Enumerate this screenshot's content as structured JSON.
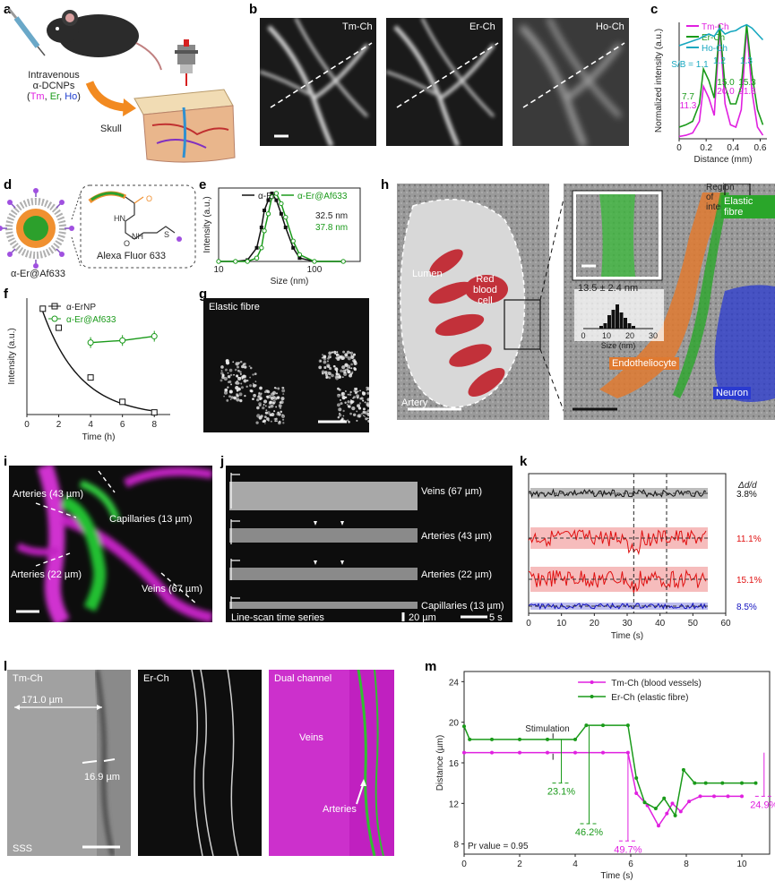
{
  "panel_letters": {
    "a": "a",
    "b": "b",
    "c": "c",
    "d": "d",
    "e": "e",
    "f": "f",
    "g": "g",
    "h": "h",
    "i": "i",
    "j": "j",
    "k": "k",
    "l": "l",
    "m": "m"
  },
  "panel_a": {
    "injection_line1": "Intravenous",
    "injection_line2": "α-DCNPs",
    "dopant_open": "(",
    "tm": "Tm",
    "sep1": ", ",
    "er": "Er",
    "sep2": ", ",
    "ho": "Ho",
    "dopant_close": ")",
    "skull": "Skull"
  },
  "panel_b": {
    "channels": [
      "Tm-Ch",
      "Er-Ch",
      "Ho-Ch"
    ]
  },
  "panel_d": {
    "dye": "Alexa Fluor 633",
    "particle": "α-Er@Af633"
  },
  "panel_g": {
    "title": "Elastic fibre"
  },
  "panel_h": {
    "lumen": "Lumen",
    "rbc_1": "Red",
    "rbc_2": "blood",
    "rbc_3": "cell",
    "artery": "Artery",
    "roi_1": "Region",
    "roi_2": "of",
    "roi_3": "interest",
    "elastic": "Elastic fibre",
    "thickness": "13.5 ± 2.4 nm",
    "endo": "Endotheliocyte",
    "neuron": "Neuron",
    "hist_xlabel": "Size (nm)",
    "hist_ticks": [
      "0",
      "10",
      "20",
      "30"
    ],
    "hist_values": [
      1,
      2,
      5,
      7,
      9,
      6,
      4,
      2,
      1
    ]
  },
  "panel_i": {
    "labels": [
      "Arteries (43 µm)",
      "Capillaries (13 µm)",
      "Arteries (22 µm)",
      "Veins (67 µm)"
    ]
  },
  "panel_j": {
    "rows": [
      "Veins (67 µm)",
      "Arteries (43 µm)",
      "Arteries (22 µm)",
      "Capillaries (13 µm)"
    ],
    "caption": "Line-scan time series",
    "scale_um": "20 µm",
    "scale_s": "5 s"
  },
  "panel_l": {
    "tm": "Tm-Ch",
    "er": "Er-Ch",
    "dual": "Dual channel",
    "width1": "171.0 µm",
    "width2": "16.9 µm",
    "sss": "SSS",
    "veins": "Veins",
    "arteries": "Arteries"
  },
  "colors": {
    "tm": "#e020e0",
    "er": "#1a9a1a",
    "ho": "#18a8c0",
    "black": "#111111",
    "red": "#e01010",
    "blue": "#1010c0",
    "rbc": "#c0202a",
    "endo": "#e07a30",
    "neuron": "#2a3ad0",
    "elastic": "#2aa62a"
  },
  "chart_data": [
    {
      "panel": "c",
      "type": "line",
      "xlabel": "Distance (mm)",
      "ylabel": "Normalized intensity (a.u.)",
      "xlim": [
        0,
        0.65
      ],
      "xticks": [
        "0",
        "0.2",
        "0.4",
        "0.6"
      ],
      "series": [
        {
          "name": "Tm-Ch",
          "x": [
            0,
            0.05,
            0.1,
            0.15,
            0.18,
            0.22,
            0.26,
            0.3,
            0.34,
            0.38,
            0.42,
            0.46,
            0.5,
            0.54,
            0.58,
            0.62
          ],
          "y": [
            0.02,
            0.03,
            0.05,
            0.15,
            0.45,
            0.35,
            0.2,
            0.95,
            0.3,
            0.12,
            0.1,
            0.25,
            0.95,
            0.4,
            0.1,
            0.03
          ]
        },
        {
          "name": "Er-Ch",
          "x": [
            0,
            0.05,
            0.1,
            0.15,
            0.18,
            0.22,
            0.26,
            0.3,
            0.34,
            0.38,
            0.42,
            0.46,
            0.5,
            0.54,
            0.58,
            0.62
          ],
          "y": [
            0.1,
            0.12,
            0.15,
            0.3,
            0.6,
            0.5,
            0.35,
            0.98,
            0.45,
            0.3,
            0.3,
            0.45,
            0.98,
            0.55,
            0.25,
            0.12
          ]
        },
        {
          "name": "Ho-Ch",
          "x": [
            0,
            0.05,
            0.1,
            0.15,
            0.18,
            0.22,
            0.26,
            0.3,
            0.34,
            0.38,
            0.42,
            0.46,
            0.5,
            0.54,
            0.58,
            0.62
          ],
          "y": [
            0.8,
            0.82,
            0.84,
            0.86,
            0.88,
            0.9,
            0.88,
            0.95,
            0.9,
            0.92,
            0.93,
            0.96,
            0.98,
            0.95,
            0.9,
            0.85
          ]
        }
      ],
      "annotations": [
        "S/B = 1.1",
        "1.2",
        "1.3",
        "7.7",
        "11.3",
        "15.0",
        "20.0",
        "15.3",
        "21.3"
      ]
    },
    {
      "panel": "e",
      "type": "line",
      "xlabel": "Size (nm)",
      "ylabel": "Intensity (a.u.)",
      "xscale": "log",
      "xticks": [
        "10",
        "100"
      ],
      "series": [
        {
          "name": "α-Er",
          "x": [
            10,
            15,
            20,
            25,
            28,
            30,
            33,
            36,
            40,
            45,
            50,
            60,
            70,
            100,
            200
          ],
          "y": [
            0,
            0,
            0.02,
            0.2,
            0.5,
            0.75,
            0.9,
            1.0,
            0.9,
            0.7,
            0.5,
            0.2,
            0.05,
            0,
            0
          ]
        },
        {
          "name": "α-Er@Af633",
          "x": [
            10,
            15,
            20,
            25,
            28,
            30,
            33,
            36,
            40,
            45,
            50,
            60,
            70,
            100,
            200
          ],
          "y": [
            0,
            0,
            0,
            0.05,
            0.2,
            0.45,
            0.7,
            0.95,
            1.0,
            0.85,
            0.65,
            0.3,
            0.1,
            0,
            0
          ]
        }
      ],
      "annotations": [
        "32.5 nm",
        "37.8 nm"
      ]
    },
    {
      "panel": "f",
      "type": "line",
      "xlabel": "Time (h)",
      "ylabel": "Intensity (a.u.)",
      "xticks": [
        "0",
        "2",
        "4",
        "6",
        "8"
      ],
      "xlim": [
        0,
        9
      ],
      "ylim": [
        0,
        1.1
      ],
      "series": [
        {
          "name": "α-ErNP",
          "x": [
            1,
            2,
            4,
            6,
            8
          ],
          "y": [
            1.0,
            0.82,
            0.35,
            0.12,
            0.02
          ]
        },
        {
          "name": "α-Er@Af633",
          "x": [
            4,
            6,
            8
          ],
          "y": [
            0.68,
            0.7,
            0.74
          ]
        }
      ]
    },
    {
      "panel": "k",
      "type": "line",
      "xlabel": "Time (s)",
      "ylabel": "",
      "xticks": [
        "0",
        "10",
        "20",
        "30",
        "40",
        "50",
        "60"
      ],
      "xlim": [
        0,
        60
      ],
      "header": "Δd/d",
      "series": [
        {
          "name": "Veins (67 µm)",
          "value": "3.8%"
        },
        {
          "name": "Arteries (43 µm)",
          "value": "11.1%"
        },
        {
          "name": "Arteries (22 µm)",
          "value": "15.1%"
        },
        {
          "name": "Capillaries (13 µm)",
          "value": "8.5%"
        }
      ]
    },
    {
      "panel": "m",
      "type": "line",
      "xlabel": "Time (s)",
      "ylabel": "Distance (µm)",
      "xlim": [
        0,
        11
      ],
      "ylim": [
        7,
        25
      ],
      "xticks": [
        "0",
        "2",
        "4",
        "6",
        "8",
        "10"
      ],
      "yticks": [
        "8",
        "12",
        "16",
        "20",
        "24"
      ],
      "series": [
        {
          "name": "Tm-Ch (blood vessels)",
          "x": [
            0,
            1,
            2,
            3,
            4,
            5,
            5.9,
            6.2,
            6.6,
            7.0,
            7.3,
            7.5,
            7.8,
            8.1,
            8.5,
            9,
            9.5,
            10
          ],
          "y": [
            17,
            17,
            17,
            17,
            17,
            17,
            17,
            13,
            11.8,
            9.8,
            11,
            12,
            11.2,
            12.2,
            12.7,
            12.7,
            12.7,
            12.7
          ]
        },
        {
          "name": "Er-Ch (elastic fibre)",
          "x": [
            0,
            0.2,
            1,
            2,
            3,
            4,
            4.4,
            5,
            5.9,
            6.2,
            6.5,
            6.9,
            7.2,
            7.6,
            7.9,
            8.3,
            8.7,
            9.3,
            10,
            10.5
          ],
          "y": [
            19.6,
            18.3,
            18.3,
            18.3,
            18.3,
            18.3,
            19.7,
            19.7,
            19.7,
            14.5,
            12.1,
            11.5,
            12.5,
            10.8,
            15.3,
            14,
            14,
            14,
            14,
            14
          ]
        }
      ],
      "annotations": [
        "Stimulation",
        "23.1%",
        "46.2%",
        "49.7%",
        "24.9%",
        "Pr value = 0.95"
      ]
    }
  ]
}
